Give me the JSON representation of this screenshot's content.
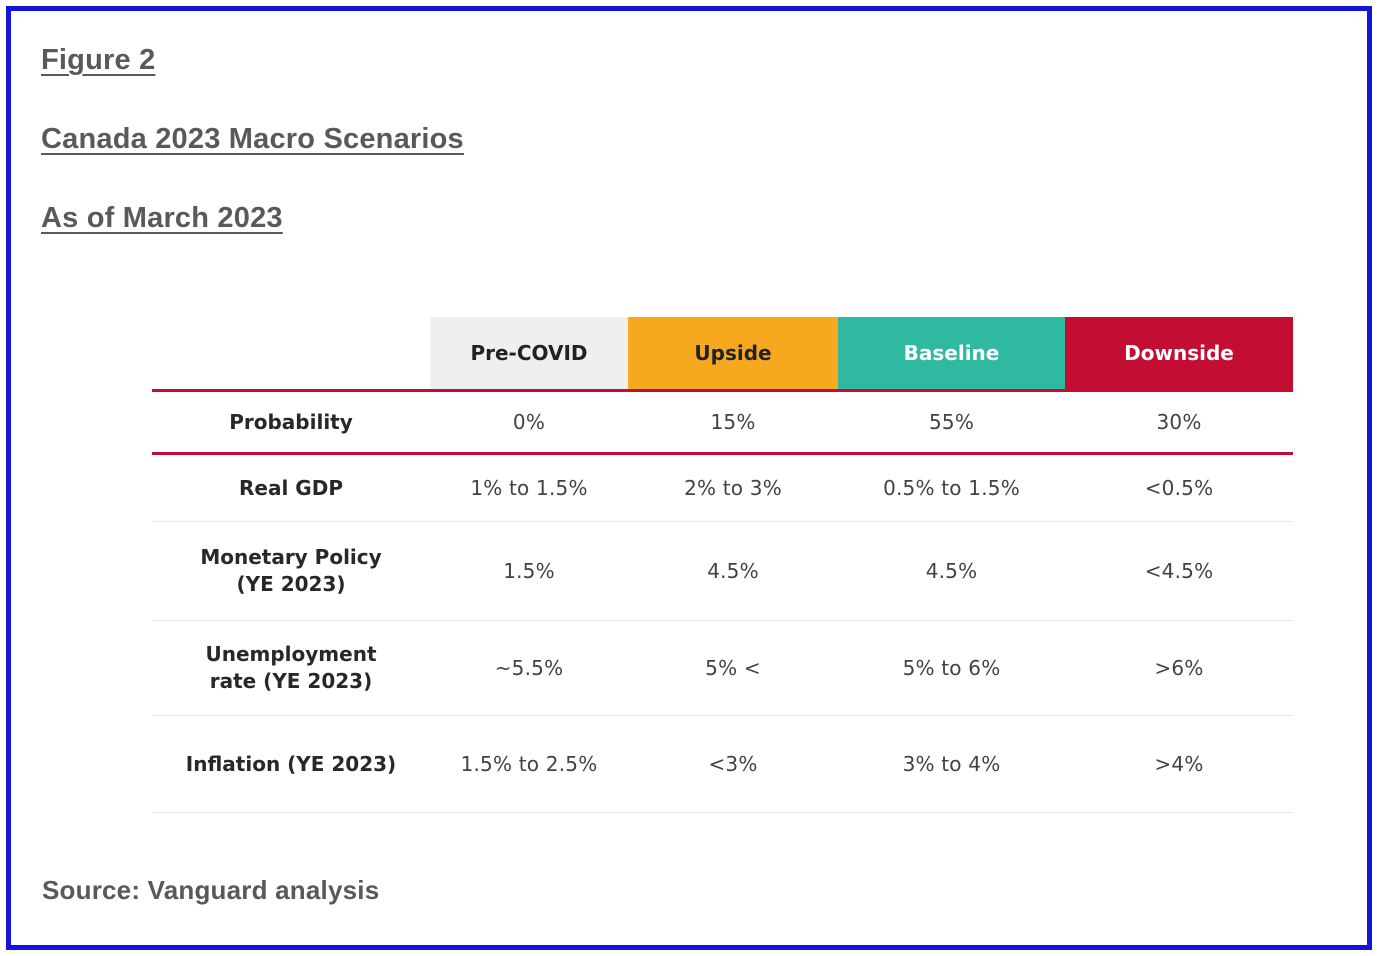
{
  "page": {
    "border_color": "#1414dd",
    "background": "#ffffff"
  },
  "headings": {
    "figure_label": "Figure 2",
    "title": "Canada 2023 Macro Scenarios",
    "as_of": "As of March 2023"
  },
  "table": {
    "accent_rule_color": "#c30d33",
    "columns": [
      {
        "label": "Pre-COVID",
        "bg": "#efefef",
        "text_color": "#222226"
      },
      {
        "label": "Upside",
        "bg": "#f6a81e",
        "text_color": "#222226"
      },
      {
        "label": "Baseline",
        "bg": "#2fb9a0",
        "text_color": "#ffffff"
      },
      {
        "label": "Downside",
        "bg": "#c30d33",
        "text_color": "#ffffff"
      }
    ],
    "rows": [
      {
        "label": "Probability",
        "values": [
          "0%",
          "15%",
          "55%",
          "30%"
        ]
      },
      {
        "label": "Real GDP",
        "values": [
          "1% to 1.5%",
          "2% to 3%",
          "0.5% to 1.5%",
          "<0.5%"
        ]
      },
      {
        "label": "Monetary Policy\n(YE 2023)",
        "values": [
          "1.5%",
          "4.5%",
          "4.5%",
          "<4.5%"
        ]
      },
      {
        "label": "Unemployment\nrate (YE 2023)",
        "values": [
          "~5.5%",
          "5% <",
          "5% to 6%",
          ">6%"
        ]
      },
      {
        "label": "Inflation (YE 2023)",
        "values": [
          "1.5% to 2.5%",
          "<3%",
          "3% to 4%",
          ">4%"
        ]
      }
    ]
  },
  "source": "Source: Vanguard analysis"
}
